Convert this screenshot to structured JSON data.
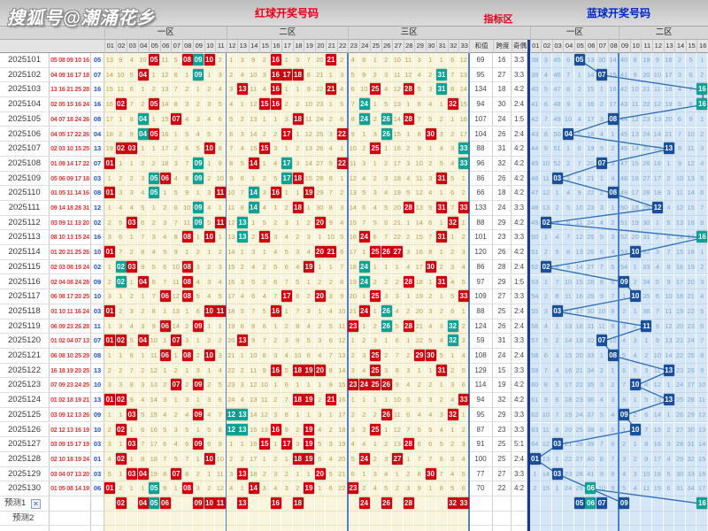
{
  "watermark": "搜狐号@潮涌花乡",
  "header": {
    "red_title": "红球开奖号码",
    "indicator_title": "指标区",
    "blue_title": "蓝球开奖号码",
    "red_zones": [
      "一区",
      "二区",
      "三区"
    ],
    "blue_zones": [
      "一区",
      "二区"
    ],
    "indicator_cols": [
      "和值",
      "跨度",
      "奇偶比"
    ],
    "red_cols": [
      "01",
      "02",
      "03",
      "04",
      "05",
      "06",
      "07",
      "08",
      "09",
      "10",
      "11",
      "12",
      "13",
      "14",
      "15",
      "16",
      "17",
      "18",
      "19",
      "20",
      "21",
      "22",
      "23",
      "24",
      "25",
      "26",
      "27",
      "28",
      "29",
      "30",
      "31",
      "32",
      "33"
    ],
    "blue_cols": [
      "01",
      "02",
      "03",
      "04",
      "05",
      "06",
      "07",
      "08",
      "09",
      "10",
      "11",
      "12",
      "13",
      "14",
      "15",
      "16"
    ]
  },
  "chart_data": {
    "type": "table",
    "red_missing_before_first": [
      12,
      8,
      3,
      9,
      0,
      10,
      4,
      0,
      0,
      0,
      1,
      0,
      2,
      8,
      1,
      0,
      0,
      2,
      6,
      19,
      0,
      1,
      3,
      7,
      0,
      1,
      9,
      10,
      2,
      0,
      0,
      5,
      11
    ],
    "blue_missing_before_first": [
      37,
      2,
      44,
      5,
      0,
      12,
      29,
      13,
      39,
      7,
      18,
      8,
      15,
      1,
      4,
      0
    ],
    "rows": [
      {
        "period": "2025101",
        "reds": [
          5,
          8,
          9,
          10,
          16,
          21
        ],
        "blue": 5,
        "sum": 69,
        "span": 16,
        "ratio": "3:3",
        "teal_reds": [
          9
        ],
        "teal_blue": false
      },
      {
        "period": "2025102",
        "reds": [
          4,
          9,
          16,
          17,
          18,
          31
        ],
        "blue": 7,
        "sum": 95,
        "span": 27,
        "ratio": "3:3",
        "teal_reds": [
          9,
          31
        ],
        "teal_blue": false
      },
      {
        "period": "2025103",
        "reds": [
          13,
          16,
          21,
          25,
          28,
          31
        ],
        "blue": 16,
        "sum": 134,
        "span": 18,
        "ratio": "4:2",
        "teal_reds": [
          31
        ],
        "teal_blue": true
      },
      {
        "period": "2025104",
        "reds": [
          2,
          5,
          15,
          16,
          24,
          32
        ],
        "blue": 16,
        "sum": 94,
        "span": 30,
        "ratio": "2:4",
        "teal_reds": [
          24
        ],
        "teal_blue": true
      },
      {
        "period": "2025105",
        "reds": [
          4,
          7,
          18,
          24,
          26,
          28
        ],
        "blue": 8,
        "sum": 107,
        "span": 24,
        "ratio": "1:5",
        "teal_reds": [
          4,
          24,
          26
        ],
        "teal_blue": false
      },
      {
        "period": "2025106",
        "reds": [
          4,
          5,
          17,
          22,
          26,
          30
        ],
        "blue": 4,
        "sum": 104,
        "span": 26,
        "ratio": "2:4",
        "teal_reds": [
          4,
          26
        ],
        "teal_blue": false
      },
      {
        "period": "2025107",
        "reds": [
          2,
          3,
          10,
          15,
          25,
          33
        ],
        "blue": 13,
        "sum": 88,
        "span": 31,
        "ratio": "4:2",
        "teal_reds": [
          33
        ],
        "teal_blue": false
      },
      {
        "period": "2025108",
        "reds": [
          1,
          9,
          14,
          17,
          22,
          33
        ],
        "blue": 7,
        "sum": 96,
        "span": 32,
        "ratio": "4:2",
        "teal_reds": [
          9,
          17,
          33
        ],
        "teal_blue": false
      },
      {
        "period": "2025109",
        "reds": [
          5,
          6,
          9,
          17,
          18,
          31
        ],
        "blue": 3,
        "sum": 86,
        "span": 26,
        "ratio": "4:2",
        "teal_reds": [
          5,
          9,
          17
        ],
        "teal_blue": false
      },
      {
        "period": "2025110",
        "reds": [
          1,
          5,
          11,
          14,
          16,
          19
        ],
        "blue": 8,
        "sum": 66,
        "span": 18,
        "ratio": "4:2",
        "teal_reds": [
          5,
          14
        ],
        "teal_blue": false
      },
      {
        "period": "2025111",
        "reds": [
          9,
          14,
          18,
          28,
          31,
          33
        ],
        "blue": 12,
        "sum": 133,
        "span": 24,
        "ratio": "3:3",
        "teal_reds": [
          9,
          14
        ],
        "teal_blue": false
      },
      {
        "period": "2025112",
        "reds": [
          3,
          9,
          11,
          13,
          20,
          32
        ],
        "blue": 2,
        "sum": 88,
        "span": 29,
        "ratio": "4:2",
        "teal_reds": [
          9,
          13
        ],
        "teal_blue": false
      },
      {
        "period": "2025113",
        "reds": [
          8,
          10,
          13,
          15,
          24,
          31
        ],
        "blue": 16,
        "sum": 101,
        "span": 23,
        "ratio": "3:3",
        "teal_reds": [
          13
        ],
        "teal_blue": true
      },
      {
        "period": "2025114",
        "reds": [
          1,
          20,
          21,
          25,
          26,
          27
        ],
        "blue": 10,
        "sum": 120,
        "span": 26,
        "ratio": "4:2",
        "teal_reds": [],
        "teal_blue": false
      },
      {
        "period": "2025115",
        "reds": [
          2,
          3,
          8,
          19,
          24,
          30
        ],
        "blue": 2,
        "sum": 86,
        "span": 28,
        "ratio": "2:4",
        "teal_reds": [
          2,
          24
        ],
        "teal_blue": false
      },
      {
        "period": "2025116",
        "reds": [
          2,
          4,
          8,
          24,
          28,
          31
        ],
        "blue": 9,
        "sum": 97,
        "span": 29,
        "ratio": "1:5",
        "teal_reds": [
          2,
          24
        ],
        "teal_blue": false
      },
      {
        "period": "2025117",
        "reds": [
          6,
          8,
          17,
          20,
          25,
          33
        ],
        "blue": 10,
        "sum": 109,
        "span": 27,
        "ratio": "3:3",
        "teal_reds": [],
        "teal_blue": false
      },
      {
        "period": "2025118",
        "reds": [
          1,
          10,
          11,
          16,
          24,
          26
        ],
        "blue": 3,
        "sum": 88,
        "span": 25,
        "ratio": "2:4",
        "teal_reds": [
          26
        ],
        "teal_blue": false
      },
      {
        "period": "2025119",
        "reds": [
          6,
          9,
          23,
          26,
          28,
          32
        ],
        "blue": 11,
        "sum": 124,
        "span": 26,
        "ratio": "2:4",
        "teal_reds": [
          26,
          32
        ],
        "teal_blue": false
      },
      {
        "period": "2025120",
        "reds": [
          1,
          2,
          4,
          7,
          13,
          32
        ],
        "blue": 7,
        "sum": 59,
        "span": 31,
        "ratio": "3:3",
        "teal_reds": [
          32
        ],
        "teal_blue": false
      },
      {
        "period": "2025121",
        "reds": [
          6,
          8,
          10,
          25,
          29,
          30
        ],
        "blue": 8,
        "sum": 108,
        "span": 24,
        "ratio": "2:4",
        "teal_reds": [],
        "teal_blue": false
      },
      {
        "period": "2025122",
        "reds": [
          16,
          18,
          19,
          20,
          25,
          31
        ],
        "blue": 13,
        "sum": 129,
        "span": 15,
        "ratio": "3:3",
        "teal_reds": [],
        "teal_blue": false
      },
      {
        "period": "2025123",
        "reds": [
          7,
          9,
          23,
          24,
          25,
          26
        ],
        "blue": 10,
        "sum": 114,
        "span": 19,
        "ratio": "4:2",
        "teal_reds": [],
        "teal_blue": false
      },
      {
        "period": "2025124",
        "reds": [
          1,
          2,
          18,
          19,
          21,
          33
        ],
        "blue": 13,
        "sum": 94,
        "span": 32,
        "ratio": "4:2",
        "teal_reds": [],
        "teal_blue": false
      },
      {
        "period": "2025125",
        "reds": [
          3,
          9,
          12,
          13,
          26,
          32
        ],
        "blue": 9,
        "sum": 95,
        "span": 29,
        "ratio": "3:3",
        "teal_reds": [
          12,
          13
        ],
        "teal_blue": false
      },
      {
        "period": "2025126",
        "reds": [
          2,
          12,
          13,
          16,
          19,
          25
        ],
        "blue": 10,
        "sum": 87,
        "span": 23,
        "ratio": "3:3",
        "teal_reds": [
          12,
          13
        ],
        "teal_blue": false
      },
      {
        "period": "2025127",
        "reds": [
          3,
          9,
          15,
          17,
          19,
          28
        ],
        "blue": 3,
        "sum": 91,
        "span": 25,
        "ratio": "5:1",
        "teal_reds": [],
        "teal_blue": false
      },
      {
        "period": "2025128",
        "reds": [
          2,
          10,
          18,
          19,
          24,
          27
        ],
        "blue": 1,
        "sum": 100,
        "span": 25,
        "ratio": "2:4",
        "teal_reds": [],
        "teal_blue": false
      },
      {
        "period": "2025129",
        "reds": [
          3,
          4,
          7,
          13,
          20,
          30
        ],
        "blue": 3,
        "sum": 77,
        "span": 27,
        "ratio": "3:3",
        "teal_reds": [],
        "teal_blue": false
      },
      {
        "period": "2025130",
        "reds": [
          1,
          5,
          8,
          14,
          19,
          23
        ],
        "blue": 6,
        "sum": 70,
        "span": 22,
        "ratio": "4:2",
        "teal_reds": [
          5
        ],
        "teal_blue": true
      }
    ]
  },
  "predictions": {
    "row1_label": "预测1",
    "row2_label": "预测2",
    "close_icon": "✕",
    "reds": [
      2,
      4,
      5,
      6,
      9,
      10,
      11,
      13,
      16,
      18,
      24,
      26,
      28,
      32,
      33
    ],
    "teal_reds": [
      5
    ],
    "blues": [
      5,
      6,
      7,
      9,
      16
    ],
    "teal_blues": [
      6,
      16
    ]
  },
  "colors": {
    "red_square": "#d3010e",
    "teal_square": "#0aa396",
    "blue_square": "#184f9e",
    "trend_line": "#2e6db4",
    "zone_separator": "#4d7fd0",
    "heavy_divider": "#1a3a8c"
  }
}
